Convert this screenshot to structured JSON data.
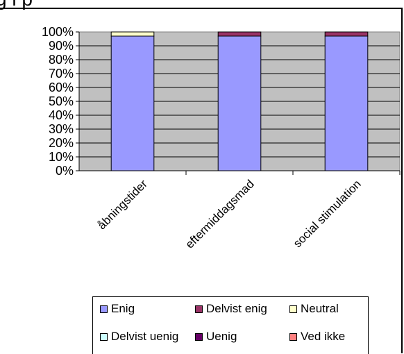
{
  "chart_data": {
    "type": "bar",
    "stacked": true,
    "percent_stacked": true,
    "categories": [
      "åbningstider",
      "eftermiddagsmad",
      "social stimulation"
    ],
    "series": [
      {
        "name": "Enig",
        "values": [
          97,
          97,
          97
        ],
        "color": "#9999ff"
      },
      {
        "name": "Delvist enig",
        "values": [
          0,
          3,
          3
        ],
        "color": "#993366"
      },
      {
        "name": "Neutral",
        "values": [
          3,
          0,
          0
        ],
        "color": "#ffffcc"
      },
      {
        "name": "Delvist uenig",
        "values": [
          0,
          0,
          0
        ],
        "color": "#ccffff"
      },
      {
        "name": "Uenig",
        "values": [
          0,
          0,
          0
        ],
        "color": "#660066"
      },
      {
        "name": "Ved ikke",
        "values": [
          0,
          0,
          0
        ],
        "color": "#ff8080"
      }
    ],
    "ylim": [
      0,
      100
    ],
    "yticks": [
      "0%",
      "10%",
      "20%",
      "30%",
      "40%",
      "50%",
      "60%",
      "70%",
      "80%",
      "90%",
      "100%"
    ],
    "grid": true,
    "plot_background": "#c0c0c0",
    "legend_position": "bottom"
  }
}
